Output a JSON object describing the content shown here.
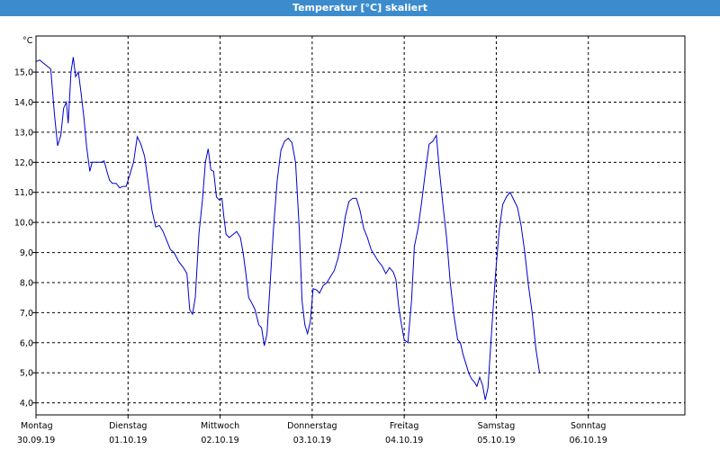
{
  "window": {
    "title": "Temperatur [°C] skaliert"
  },
  "chart_data": {
    "type": "line",
    "title": "Temperatur [°C] skaliert",
    "ylabel": "°C",
    "ylim": [
      3.6,
      16.2
    ],
    "yticks": [
      "4,0",
      "5,0",
      "6,0",
      "7,0",
      "8,0",
      "9,0",
      "10,0",
      "11,0",
      "12,0",
      "13,0",
      "14,0",
      "15,0"
    ],
    "xlim": [
      0,
      7
    ],
    "xticks": [
      {
        "day": "Montag",
        "date": "30.09.19"
      },
      {
        "day": "Dienstag",
        "date": "01.10.19"
      },
      {
        "day": "Mittwoch",
        "date": "02.10.19"
      },
      {
        "day": "Donnerstag",
        "date": "03.10.19"
      },
      {
        "day": "Freitag",
        "date": "04.10.19"
      },
      {
        "day": "Samstag",
        "date": "05.10.19"
      },
      {
        "day": "Sonntag",
        "date": "06.10.19"
      }
    ],
    "grid": true,
    "line_color": "#0000cc",
    "series": [
      {
        "name": "",
        "points": [
          [
            0.0,
            15.35
          ],
          [
            0.04,
            15.4
          ],
          [
            0.08,
            15.3
          ],
          [
            0.12,
            15.2
          ],
          [
            0.16,
            15.1
          ],
          [
            0.2,
            13.6
          ],
          [
            0.235,
            12.55
          ],
          [
            0.27,
            12.9
          ],
          [
            0.3,
            13.8
          ],
          [
            0.33,
            14.0
          ],
          [
            0.35,
            13.3
          ],
          [
            0.38,
            15.0
          ],
          [
            0.405,
            15.5
          ],
          [
            0.43,
            14.85
          ],
          [
            0.46,
            15.0
          ],
          [
            0.49,
            14.3
          ],
          [
            0.52,
            13.5
          ],
          [
            0.55,
            12.5
          ],
          [
            0.585,
            11.7
          ],
          [
            0.61,
            12.0
          ],
          [
            0.66,
            12.0
          ],
          [
            0.71,
            12.0
          ],
          [
            0.74,
            12.05
          ],
          [
            0.77,
            11.7
          ],
          [
            0.8,
            11.4
          ],
          [
            0.83,
            11.3
          ],
          [
            0.87,
            11.3
          ],
          [
            0.91,
            11.15
          ],
          [
            0.94,
            11.2
          ],
          [
            0.98,
            11.2
          ],
          [
            1.02,
            11.6
          ],
          [
            1.06,
            12.0
          ],
          [
            1.1,
            12.85
          ],
          [
            1.14,
            12.6
          ],
          [
            1.18,
            12.2
          ],
          [
            1.22,
            11.3
          ],
          [
            1.26,
            10.4
          ],
          [
            1.3,
            9.85
          ],
          [
            1.34,
            9.9
          ],
          [
            1.38,
            9.7
          ],
          [
            1.42,
            9.4
          ],
          [
            1.46,
            9.1
          ],
          [
            1.5,
            9.0
          ],
          [
            1.55,
            8.7
          ],
          [
            1.6,
            8.5
          ],
          [
            1.64,
            8.3
          ],
          [
            1.67,
            7.1
          ],
          [
            1.7,
            6.95
          ],
          [
            1.73,
            7.5
          ],
          [
            1.77,
            9.6
          ],
          [
            1.81,
            10.8
          ],
          [
            1.84,
            12.0
          ],
          [
            1.87,
            12.45
          ],
          [
            1.9,
            11.75
          ],
          [
            1.93,
            11.7
          ],
          [
            1.96,
            10.85
          ],
          [
            1.99,
            10.75
          ],
          [
            2.02,
            10.8
          ],
          [
            2.04,
            10.2
          ],
          [
            2.065,
            9.6
          ],
          [
            2.1,
            9.5
          ],
          [
            2.14,
            9.6
          ],
          [
            2.18,
            9.7
          ],
          [
            2.22,
            9.5
          ],
          [
            2.25,
            9.0
          ],
          [
            2.28,
            8.3
          ],
          [
            2.31,
            7.5
          ],
          [
            2.34,
            7.35
          ],
          [
            2.38,
            7.1
          ],
          [
            2.42,
            6.6
          ],
          [
            2.45,
            6.5
          ],
          [
            2.48,
            5.9
          ],
          [
            2.51,
            6.3
          ],
          [
            2.54,
            7.8
          ],
          [
            2.58,
            9.8
          ],
          [
            2.62,
            11.4
          ],
          [
            2.66,
            12.4
          ],
          [
            2.7,
            12.7
          ],
          [
            2.74,
            12.8
          ],
          [
            2.78,
            12.65
          ],
          [
            2.82,
            12.0
          ],
          [
            2.86,
            9.8
          ],
          [
            2.89,
            7.4
          ],
          [
            2.92,
            6.6
          ],
          [
            2.95,
            6.3
          ],
          [
            2.98,
            6.7
          ],
          [
            3.01,
            7.8
          ],
          [
            3.05,
            7.75
          ],
          [
            3.08,
            7.65
          ],
          [
            3.12,
            7.9
          ],
          [
            3.16,
            8.0
          ],
          [
            3.2,
            8.2
          ],
          [
            3.24,
            8.4
          ],
          [
            3.28,
            8.8
          ],
          [
            3.32,
            9.4
          ],
          [
            3.36,
            10.2
          ],
          [
            3.4,
            10.7
          ],
          [
            3.44,
            10.8
          ],
          [
            3.48,
            10.8
          ],
          [
            3.52,
            10.4
          ],
          [
            3.56,
            9.8
          ],
          [
            3.6,
            9.5
          ],
          [
            3.64,
            9.1
          ],
          [
            3.68,
            8.9
          ],
          [
            3.72,
            8.7
          ],
          [
            3.76,
            8.55
          ],
          [
            3.8,
            8.3
          ],
          [
            3.84,
            8.5
          ],
          [
            3.88,
            8.35
          ],
          [
            3.91,
            8.1
          ],
          [
            3.94,
            7.2
          ],
          [
            3.97,
            6.6
          ],
          [
            4.0,
            6.1
          ],
          [
            4.04,
            6.0
          ],
          [
            4.08,
            7.4
          ],
          [
            4.11,
            9.2
          ],
          [
            4.15,
            9.8
          ],
          [
            4.19,
            10.7
          ],
          [
            4.23,
            11.7
          ],
          [
            4.27,
            12.6
          ],
          [
            4.31,
            12.7
          ],
          [
            4.35,
            12.9
          ],
          [
            4.38,
            11.8
          ],
          [
            4.42,
            10.6
          ],
          [
            4.46,
            9.5
          ],
          [
            4.5,
            8.0
          ],
          [
            4.54,
            6.9
          ],
          [
            4.58,
            6.1
          ],
          [
            4.61,
            6.0
          ],
          [
            4.64,
            5.6
          ],
          [
            4.67,
            5.3
          ],
          [
            4.7,
            5.0
          ],
          [
            4.73,
            4.8
          ],
          [
            4.76,
            4.7
          ],
          [
            4.79,
            4.55
          ],
          [
            4.82,
            4.85
          ],
          [
            4.85,
            4.6
          ],
          [
            4.88,
            4.1
          ],
          [
            4.91,
            4.5
          ],
          [
            4.95,
            6.4
          ],
          [
            4.99,
            8.2
          ],
          [
            5.03,
            9.7
          ],
          [
            5.07,
            10.6
          ],
          [
            5.11,
            10.85
          ],
          [
            5.15,
            11.0
          ],
          [
            5.19,
            10.75
          ],
          [
            5.23,
            10.5
          ],
          [
            5.27,
            9.9
          ],
          [
            5.31,
            9.0
          ],
          [
            5.35,
            7.9
          ],
          [
            5.39,
            7.0
          ],
          [
            5.43,
            5.8
          ],
          [
            5.47,
            5.0
          ]
        ]
      }
    ]
  }
}
